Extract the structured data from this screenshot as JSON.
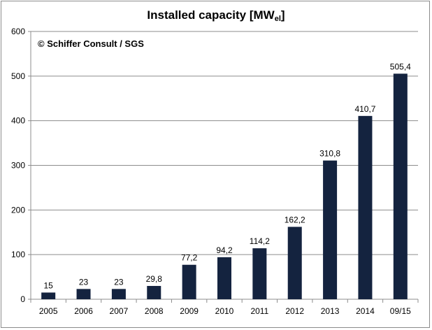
{
  "chart_data": {
    "type": "bar",
    "title_main": "Installed capacity [MW",
    "title_sub": "el",
    "title_close": "]",
    "annotation": "© Schiffer Consult / SGS",
    "categories": [
      "2005",
      "2006",
      "2007",
      "2008",
      "2009",
      "2010",
      "2011",
      "2012",
      "2013",
      "2014",
      "09/15"
    ],
    "values": [
      15,
      23,
      23,
      29.8,
      77.2,
      94.2,
      114.2,
      162.2,
      310.8,
      410.7,
      505.4
    ],
    "value_labels": [
      "15",
      "23",
      "23",
      "29,8",
      "77,2",
      "94,2",
      "114,2",
      "162,2",
      "310,8",
      "410,7",
      "505,4"
    ],
    "yticks": [
      "0",
      "100",
      "200",
      "300",
      "400",
      "500",
      "600"
    ],
    "ylim": [
      0,
      600
    ],
    "grid": true,
    "bar_color": "#14233f",
    "grid_color": "#8c8c8c"
  }
}
